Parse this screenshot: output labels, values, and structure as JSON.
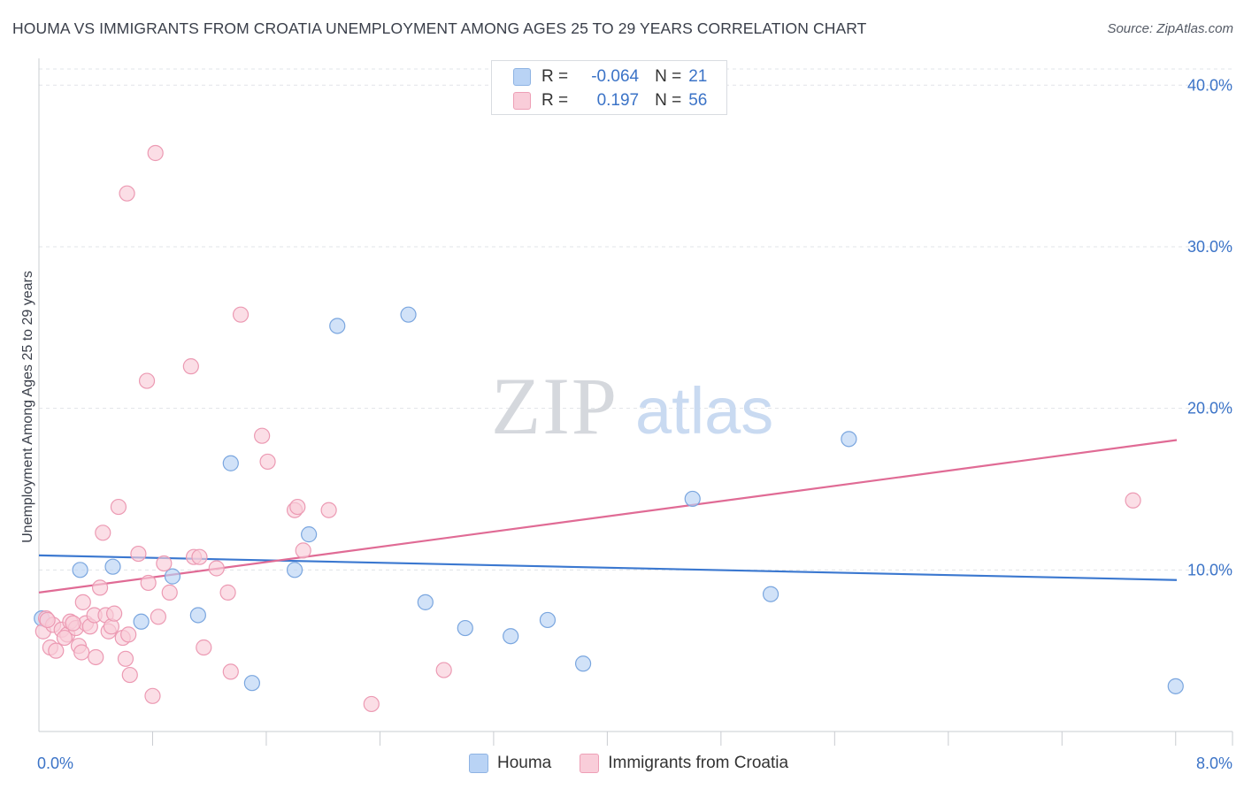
{
  "title": "HOUMA VS IMMIGRANTS FROM CROATIA UNEMPLOYMENT AMONG AGES 25 TO 29 YEARS CORRELATION CHART",
  "source": "Source: ZipAtlas.com",
  "watermark": {
    "zip": "ZIP",
    "atlas": "atlas"
  },
  "legend_stats": {
    "r_label": "R =",
    "n_label": "N =",
    "houma": {
      "r": "-0.064",
      "n": "21"
    },
    "croatia": {
      "r": "0.197",
      "n": "56"
    }
  },
  "colors": {
    "houma_fill": "#b9d3f5",
    "houma_stroke": "#7aa6df",
    "houma_line": "#3b78d0",
    "croatia_fill": "#f9cdd9",
    "croatia_stroke": "#ec9ab3",
    "croatia_line": "#e06b95",
    "tick_label": "#3b73c7"
  },
  "chart_data": {
    "type": "scatter",
    "title": "HOUMA VS IMMIGRANTS FROM CROATIA UNEMPLOYMENT AMONG AGES 25 TO 29 YEARS CORRELATION CHART",
    "xlabel": "",
    "ylabel": "Unemployment Among Ages 25 to 29 years",
    "xlim": [
      0,
      8.4
    ],
    "ylim": [
      0,
      41
    ],
    "x_tick_labels": [
      {
        "value": 0,
        "label": "0.0%"
      },
      {
        "value": 8.0,
        "label": "8.0%"
      }
    ],
    "y_tick_labels": [
      {
        "value": 10,
        "label": "10.0%"
      },
      {
        "value": 20,
        "label": "20.0%"
      },
      {
        "value": 30,
        "label": "30.0%"
      },
      {
        "value": 40,
        "label": "40.0%"
      }
    ],
    "x_minor_ticks": [
      0.8,
      1.6,
      2.4,
      3.2,
      4.0,
      4.8,
      5.6,
      6.4,
      7.2,
      8.0
    ],
    "grid": true,
    "series": [
      {
        "name": "Houma",
        "color": "blue",
        "points": [
          [
            0.02,
            7.0
          ],
          [
            0.29,
            10.0
          ],
          [
            0.52,
            10.2
          ],
          [
            0.72,
            6.8
          ],
          [
            0.94,
            9.6
          ],
          [
            1.12,
            7.2
          ],
          [
            1.35,
            16.6
          ],
          [
            1.5,
            3.0
          ],
          [
            1.8,
            10.0
          ],
          [
            1.9,
            12.2
          ],
          [
            2.1,
            25.1
          ],
          [
            2.6,
            25.8
          ],
          [
            2.72,
            8.0
          ],
          [
            3.0,
            6.4
          ],
          [
            3.32,
            5.9
          ],
          [
            3.58,
            6.9
          ],
          [
            3.83,
            4.2
          ],
          [
            4.6,
            14.4
          ],
          [
            5.15,
            8.5
          ],
          [
            5.7,
            18.1
          ],
          [
            8.0,
            2.8
          ]
        ],
        "trend": {
          "x": [
            0,
            8.4
          ],
          "y": [
            10.9,
            9.3
          ]
        }
      },
      {
        "name": "Immigrants from Croatia",
        "color": "pink",
        "points": [
          [
            0.03,
            6.2
          ],
          [
            0.05,
            7.0
          ],
          [
            0.08,
            5.2
          ],
          [
            0.1,
            6.6
          ],
          [
            0.12,
            5.0
          ],
          [
            0.16,
            6.3
          ],
          [
            0.2,
            6.0
          ],
          [
            0.22,
            6.8
          ],
          [
            0.26,
            6.4
          ],
          [
            0.28,
            5.3
          ],
          [
            0.3,
            4.9
          ],
          [
            0.31,
            8.0
          ],
          [
            0.33,
            6.7
          ],
          [
            0.36,
            6.5
          ],
          [
            0.39,
            7.2
          ],
          [
            0.4,
            4.6
          ],
          [
            0.43,
            8.9
          ],
          [
            0.45,
            12.3
          ],
          [
            0.47,
            7.2
          ],
          [
            0.49,
            6.2
          ],
          [
            0.51,
            6.5
          ],
          [
            0.53,
            7.3
          ],
          [
            0.56,
            13.9
          ],
          [
            0.59,
            5.8
          ],
          [
            0.61,
            4.5
          ],
          [
            0.63,
            6.0
          ],
          [
            0.64,
            3.5
          ],
          [
            0.62,
            33.3
          ],
          [
            0.7,
            11.0
          ],
          [
            0.76,
            21.7
          ],
          [
            0.77,
            9.2
          ],
          [
            0.8,
            2.2
          ],
          [
            0.82,
            35.8
          ],
          [
            0.84,
            7.1
          ],
          [
            0.88,
            10.4
          ],
          [
            0.92,
            8.6
          ],
          [
            1.07,
            22.6
          ],
          [
            1.09,
            10.8
          ],
          [
            1.13,
            10.8
          ],
          [
            1.16,
            5.2
          ],
          [
            1.25,
            10.1
          ],
          [
            1.33,
            8.6
          ],
          [
            1.35,
            3.7
          ],
          [
            1.42,
            25.8
          ],
          [
            1.57,
            18.3
          ],
          [
            1.61,
            16.7
          ],
          [
            1.8,
            13.7
          ],
          [
            1.82,
            13.9
          ],
          [
            1.86,
            11.2
          ],
          [
            2.04,
            13.7
          ],
          [
            2.34,
            1.7
          ],
          [
            2.85,
            3.8
          ],
          [
            7.7,
            14.3
          ],
          [
            0.06,
            6.9
          ],
          [
            0.18,
            5.8
          ],
          [
            0.24,
            6.7
          ]
        ],
        "trend": {
          "x": [
            0,
            8.4
          ],
          "y": [
            8.6,
            18.5
          ]
        }
      }
    ]
  },
  "bottom_legend": {
    "houma": "Houma",
    "croatia": "Immigrants from Croatia"
  }
}
